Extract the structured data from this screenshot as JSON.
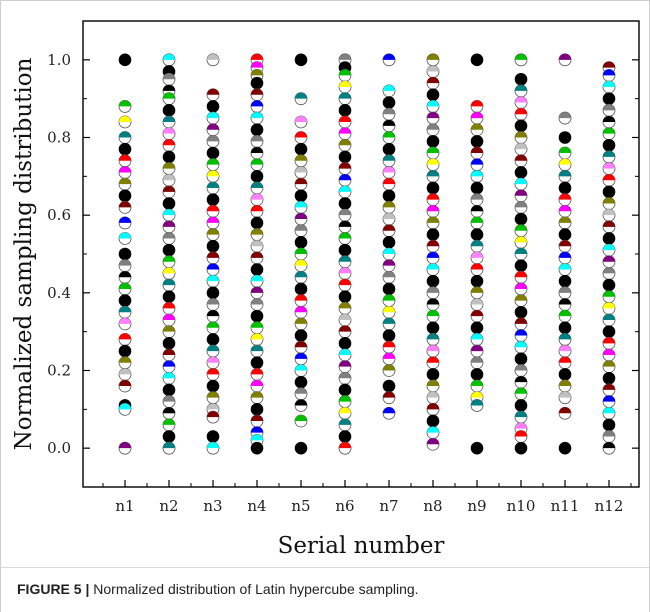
{
  "chart_data": {
    "type": "scatter",
    "xlabel": "Serial number",
    "ylabel": "Normalized sampling distribution",
    "categories": [
      "n1",
      "n2",
      "n3",
      "n4",
      "n5",
      "n6",
      "n7",
      "n8",
      "n9",
      "n10",
      "n11",
      "n12"
    ],
    "ylim": [
      -0.1,
      1.1
    ],
    "yticks": [
      "0.0",
      "0.2",
      "0.4",
      "0.6",
      "0.8",
      "1.0"
    ],
    "grid": false,
    "legend": "none",
    "marker_colors": [
      "#000000",
      "#ff0000",
      "#0000ff",
      "#00c000",
      "#ff00ff",
      "#00ffff",
      "#ffff00",
      "#808000",
      "#800080",
      "#008080",
      "#c0c0c0",
      "#808080",
      "#ff80ff",
      "#800000"
    ],
    "series": [
      {
        "name": "",
        "category": "n1",
        "values": [
          1.0,
          0.88,
          0.84,
          0.8,
          0.77,
          0.74,
          0.71,
          0.68,
          0.65,
          0.62,
          0.58,
          0.54,
          0.5,
          0.47,
          0.44,
          0.41,
          0.38,
          0.35,
          0.32,
          0.28,
          0.25,
          0.22,
          0.19,
          0.16,
          0.11,
          0.1,
          0.0
        ]
      },
      {
        "name": "",
        "category": "n2",
        "values": [
          1.0,
          0.97,
          0.95,
          0.92,
          0.9,
          0.87,
          0.84,
          0.81,
          0.78,
          0.75,
          0.72,
          0.69,
          0.66,
          0.63,
          0.6,
          0.57,
          0.54,
          0.51,
          0.48,
          0.45,
          0.42,
          0.39,
          0.36,
          0.33,
          0.3,
          0.27,
          0.24,
          0.21,
          0.18,
          0.15,
          0.12,
          0.09,
          0.06,
          0.03,
          0.0
        ]
      },
      {
        "name": "",
        "category": "n3",
        "values": [
          1.0,
          0.91,
          0.88,
          0.85,
          0.82,
          0.79,
          0.76,
          0.73,
          0.7,
          0.67,
          0.64,
          0.61,
          0.58,
          0.55,
          0.52,
          0.49,
          0.46,
          0.43,
          0.4,
          0.37,
          0.34,
          0.31,
          0.28,
          0.25,
          0.22,
          0.19,
          0.16,
          0.13,
          0.1,
          0.08,
          0.03,
          0.0
        ]
      },
      {
        "name": "",
        "category": "n4",
        "values": [
          1.0,
          0.98,
          0.96,
          0.94,
          0.91,
          0.88,
          0.85,
          0.82,
          0.79,
          0.76,
          0.73,
          0.7,
          0.67,
          0.64,
          0.61,
          0.58,
          0.55,
          0.52,
          0.49,
          0.46,
          0.43,
          0.4,
          0.37,
          0.34,
          0.31,
          0.28,
          0.25,
          0.22,
          0.19,
          0.16,
          0.13,
          0.1,
          0.07,
          0.04,
          0.02,
          0.0
        ]
      },
      {
        "name": "",
        "category": "n5",
        "values": [
          1.0,
          0.9,
          0.84,
          0.8,
          0.77,
          0.74,
          0.71,
          0.68,
          0.65,
          0.62,
          0.59,
          0.56,
          0.53,
          0.5,
          0.47,
          0.44,
          0.41,
          0.38,
          0.35,
          0.32,
          0.29,
          0.26,
          0.23,
          0.2,
          0.17,
          0.14,
          0.11,
          0.07,
          0.0
        ]
      },
      {
        "name": "",
        "category": "n6",
        "values": [
          1.0,
          0.98,
          0.96,
          0.93,
          0.9,
          0.87,
          0.84,
          0.81,
          0.78,
          0.75,
          0.72,
          0.69,
          0.66,
          0.63,
          0.6,
          0.57,
          0.54,
          0.51,
          0.48,
          0.45,
          0.42,
          0.39,
          0.36,
          0.33,
          0.3,
          0.27,
          0.24,
          0.21,
          0.18,
          0.15,
          0.12,
          0.09,
          0.06,
          0.03,
          0.0
        ]
      },
      {
        "name": "",
        "category": "n7",
        "values": [
          1.0,
          0.92,
          0.89,
          0.86,
          0.83,
          0.8,
          0.77,
          0.74,
          0.71,
          0.68,
          0.65,
          0.62,
          0.59,
          0.56,
          0.53,
          0.5,
          0.47,
          0.44,
          0.41,
          0.38,
          0.35,
          0.32,
          0.29,
          0.26,
          0.23,
          0.2,
          0.16,
          0.13,
          0.09
        ]
      },
      {
        "name": "",
        "category": "n8",
        "values": [
          1.0,
          0.97,
          0.94,
          0.91,
          0.88,
          0.85,
          0.82,
          0.79,
          0.76,
          0.73,
          0.7,
          0.67,
          0.64,
          0.61,
          0.58,
          0.55,
          0.52,
          0.49,
          0.46,
          0.43,
          0.4,
          0.37,
          0.34,
          0.31,
          0.28,
          0.25,
          0.22,
          0.19,
          0.16,
          0.13,
          0.1,
          0.07,
          0.04,
          0.01
        ]
      },
      {
        "name": "",
        "category": "n9",
        "values": [
          1.0,
          0.88,
          0.85,
          0.82,
          0.79,
          0.76,
          0.73,
          0.7,
          0.67,
          0.64,
          0.61,
          0.58,
          0.55,
          0.52,
          0.49,
          0.46,
          0.43,
          0.4,
          0.37,
          0.34,
          0.31,
          0.28,
          0.25,
          0.22,
          0.19,
          0.16,
          0.13,
          0.11,
          0.0
        ]
      },
      {
        "name": "",
        "category": "n10",
        "values": [
          1.0,
          0.95,
          0.92,
          0.89,
          0.86,
          0.83,
          0.8,
          0.77,
          0.74,
          0.71,
          0.68,
          0.65,
          0.62,
          0.59,
          0.56,
          0.53,
          0.5,
          0.47,
          0.44,
          0.41,
          0.38,
          0.35,
          0.32,
          0.29,
          0.26,
          0.23,
          0.2,
          0.17,
          0.14,
          0.11,
          0.08,
          0.05,
          0.03,
          0.0
        ]
      },
      {
        "name": "",
        "category": "n11",
        "values": [
          1.0,
          0.85,
          0.8,
          0.76,
          0.73,
          0.7,
          0.67,
          0.64,
          0.61,
          0.58,
          0.55,
          0.52,
          0.49,
          0.46,
          0.43,
          0.4,
          0.37,
          0.34,
          0.31,
          0.28,
          0.25,
          0.22,
          0.19,
          0.16,
          0.13,
          0.09,
          0.0
        ]
      },
      {
        "name": "",
        "category": "n12",
        "values": [
          0.98,
          0.96,
          0.93,
          0.9,
          0.87,
          0.84,
          0.81,
          0.78,
          0.75,
          0.72,
          0.69,
          0.66,
          0.63,
          0.6,
          0.57,
          0.54,
          0.51,
          0.48,
          0.45,
          0.42,
          0.39,
          0.36,
          0.33,
          0.3,
          0.27,
          0.24,
          0.21,
          0.18,
          0.15,
          0.12,
          0.09,
          0.06,
          0.03,
          0.0
        ]
      }
    ]
  },
  "caption": {
    "label": "FIGURE 5 |",
    "text": "Normalized distribution of Latin hypercube sampling."
  }
}
